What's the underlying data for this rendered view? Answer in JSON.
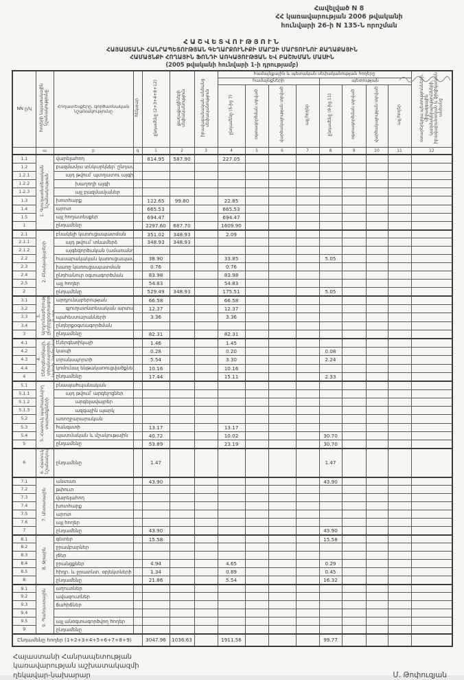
{
  "corner_note": {
    "line1": "Հավելված N 8",
    "line2": "ՀՀ կառավարության 2006 թվականի",
    "line3": "հունվարի 26-ի N 135-Ն որոշման"
  },
  "title": {
    "main": "ՀԱՇՎԵՏՎՈՒԹՅՈՒՆ",
    "line2": "ՀԱՅԱՍՏԱՆԻ ՀԱՆՐԱՊԵՏՈՒԹՅԱՆ ԳԵՂԱՐՔՈՒՆԻՔԻ ՄԱՐԶԻ ՄԱՐՏՈՒՆՈՒ ՔԱՂԱՔԱՅԻՆ",
    "line3": "ՀԱՄԱՅՆՔԻ ՀՈՂԱՅԻՆ ՖՈՆԴԻ ԱՌԿԱՅՈՒԹՅԱՆ ԵՎ ԲԱՇԽՄԱՆ ՄԱՍԻՆ",
    "line4": "(2005 թվականի հունվարի 1-ի դրությամբ)"
  },
  "table": {
    "header": {
      "nn": "NN ը/կ",
      "category": "հողերի նպատակային նշանակությունը",
      "description": "Հողատեսքերը, գործառնական նշանակությունը",
      "unit": "հեկտար",
      "band_ownership": "համայնքային և պետական սեփականության հողերը",
      "band_community": "համայնքների",
      "band_state": "պետության",
      "cols": [
        "ընդամենը (2+3+4+8+12)",
        "քաղաքացիների սեփականություն",
        "իրավաբանական անձանց սեփականություն",
        "ընդամենը (5-ից 7)",
        "օգտագործման տրված",
        "վարձակալության տրված",
        "այլ հողեր",
        "ընդամենը (9-ից 11)",
        "օգտագործման տրված",
        "վարձակալության տրված",
        "այլ հողեր",
        "օտարերկրյա պետությունների, միջազգային կազմակերպությունների, իրավաբանական և ֆիզիկական անձանց"
      ],
      "letters_row": [
        "",
        "ա",
        "բ",
        "գ",
        "1",
        "2",
        "3",
        "4",
        "5",
        "6",
        "7",
        "8",
        "9",
        "10",
        "11",
        "12"
      ]
    },
    "groups": [
      {
        "label": "1. Գյուղատնտեսական նշանակության",
        "rows": [
          {
            "nn": "1.1",
            "label": "վարելահող",
            "values": {
              "1": "814.95",
              "2": "587.90",
              "4": "227.05"
            }
          },
          {
            "nn": "1.2",
            "label": "բազմամյա տնկարկներ՝ ընդամենը"
          },
          {
            "nn": "1.2.1",
            "label": "այդ թվում՝ պտղատու այգի",
            "indent": 1
          },
          {
            "nn": "1.2.2",
            "label": "խաղողի այգի",
            "indent": 2
          },
          {
            "nn": "1.2.3",
            "label": "այլ բազմամյաներ",
            "indent": 2
          },
          {
            "nn": "1.3",
            "label": "խոտհարք",
            "values": {
              "1": "122.65",
              "2": "99.80",
              "4": "22.85"
            }
          },
          {
            "nn": "1.4",
            "label": "արոտ",
            "values": {
              "1": "665.53",
              "4": "665.53"
            }
          },
          {
            "nn": "1.5",
            "label": "այլ հողատեսքեր",
            "values": {
              "1": "694.47",
              "4": "694.47"
            }
          },
          {
            "nn": "1",
            "label": "ընդամենը",
            "total": true,
            "values": {
              "1": "2297.60",
              "2": "687.70",
              "4": "1609.90"
            }
          }
        ]
      },
      {
        "label": "2. Բնակավայրերի",
        "rows": [
          {
            "nn": "2.1",
            "label": "բնակելի կառուցապատման",
            "values": {
              "1": "351.02",
              "2": "348.93",
              "4": "2.09"
            }
          },
          {
            "nn": "2.1.1",
            "label": "այդ թվում՝ տնամերձ",
            "indent": 1,
            "values": {
              "1": "348.93",
              "2": "348.93"
            }
          },
          {
            "nn": "2.1.2",
            "label": "այգեգործական (ամառանոցային)",
            "indent": 1
          },
          {
            "nn": "2.2",
            "label": "հասարակական կառուցապատման",
            "values": {
              "1": "38.90",
              "4": "33.85",
              "8": "5.05"
            }
          },
          {
            "nn": "2.3",
            "label": "խառը կառուցապատման",
            "values": {
              "1": "0.76",
              "4": "0.76"
            }
          },
          {
            "nn": "2.4",
            "label": "ընդհանուր օգտագործման",
            "values": {
              "1": "83.98",
              "4": "83.98"
            }
          },
          {
            "nn": "2.5",
            "label": "այլ հողեր",
            "values": {
              "1": "54.83",
              "4": "54.83"
            }
          },
          {
            "nn": "2",
            "label": "ընդամենը",
            "total": true,
            "values": {
              "1": "529.49",
              "2": "348.93",
              "4": "175.51",
              "8": "5.05"
            }
          }
        ]
      },
      {
        "label": "3. Արդյունաբերության, ընդերքօգտագործման և այլ արտադրական",
        "rows": [
          {
            "nn": "3.1",
            "label": "արդյունաբերության",
            "values": {
              "1": "66.58",
              "4": "66.58"
            }
          },
          {
            "nn": "3.2",
            "label": "գյուղատնտեսական արտադրական",
            "indent": 1,
            "values": {
              "1": "12.37",
              "4": "12.37"
            }
          },
          {
            "nn": "3.3",
            "label": "պահեստարանների",
            "values": {
              "1": "3.36",
              "4": "3.36"
            }
          },
          {
            "nn": "3.4",
            "label": "ընդերքօգտագործման"
          },
          {
            "nn": "3",
            "label": "ընդամենը",
            "total": true,
            "values": {
              "1": "82.31",
              "4": "82.31"
            }
          }
        ]
      },
      {
        "label": "4. Էներգետիկայի, տրանսպորտի, կապի, կոմունալ ենթակառուցվածքների",
        "rows": [
          {
            "nn": "4.1",
            "label": "էներգետիկայի",
            "values": {
              "1": "1.46",
              "4": "1.45"
            }
          },
          {
            "nn": "4.2",
            "label": "կապի",
            "values": {
              "1": "0.28",
              "4": "0.20",
              "8": "0.08"
            }
          },
          {
            "nn": "4.3",
            "label": "տրանսպորտի",
            "values": {
              "1": "5.54",
              "4": "3.30",
              "8": "2.24"
            }
          },
          {
            "nn": "4.4",
            "label": "կոմունալ ենթակառուցվածքների",
            "values": {
              "1": "10.16",
              "4": "10.16"
            }
          },
          {
            "nn": "4",
            "label": "ընդամենը",
            "total": true,
            "values": {
              "1": "17.44",
              "4": "15.11",
              "8": "2.33"
            }
          }
        ]
      },
      {
        "label": "5. Հատուկ պահպանվող տարածքների",
        "rows": [
          {
            "nn": "5.1",
            "label": "բնապահպանական"
          },
          {
            "nn": "5.1.1",
            "label": "այդ թվում՝ արգելոցներ",
            "indent": 1
          },
          {
            "nn": "5.1.2",
            "label": "արգելավայրեր",
            "indent": 2
          },
          {
            "nn": "5.1.3",
            "label": "ազգային պարկ",
            "indent": 2
          },
          {
            "nn": "5.2",
            "label": "առողջարարական"
          },
          {
            "nn": "5.3",
            "label": "հանգստի",
            "values": {
              "1": "13.17",
              "4": "13.17"
            }
          },
          {
            "nn": "5.4",
            "label": "պատմական և մշակութային",
            "values": {
              "1": "40.72",
              "4": "10.02",
              "8": "30.70"
            }
          },
          {
            "nn": "5",
            "label": "ընդամենը",
            "total": true,
            "values": {
              "1": "53.89",
              "4": "23.19",
              "8": "30.70"
            }
          }
        ]
      },
      {
        "label": "6. Հատուկ նշանակության",
        "rows": [
          {
            "nn": "6",
            "label": "ընդամենը",
            "total": true,
            "h": 40,
            "values": {
              "1": "1.47",
              "8": "1.47"
            }
          }
        ]
      },
      {
        "label": "7. Անտառային",
        "rows": [
          {
            "nn": "7.1",
            "label": "անտառ",
            "values": {
              "1": "43.90",
              "8": "43.90"
            }
          },
          {
            "nn": "7.2",
            "label": "թփուտ"
          },
          {
            "nn": "7.3",
            "label": "վարելահող"
          },
          {
            "nn": "7.4",
            "label": "խոտհարք"
          },
          {
            "nn": "7.5",
            "label": "արոտ"
          },
          {
            "nn": "7.6",
            "label": "այլ հողեր"
          },
          {
            "nn": "7",
            "label": "ընդամենը",
            "total": true,
            "values": {
              "1": "43.90",
              "8": "43.90"
            }
          }
        ]
      },
      {
        "label": "8. Ջրային",
        "rows": [
          {
            "nn": "8.1",
            "label": "գետեր",
            "values": {
              "1": "15.58",
              "8": "15.58"
            }
          },
          {
            "nn": "8.2",
            "label": "ջրամբարներ"
          },
          {
            "nn": "8.3",
            "label": "լճեր"
          },
          {
            "nn": "8.4",
            "label": "ջրանցքներ",
            "values": {
              "1": "4.94",
              "4": "4.65",
              "8": "0.29"
            }
          },
          {
            "nn": "8.5",
            "label": "հիդր. և ջրատնտ. օբյեկտների",
            "values": {
              "1": "1.34",
              "4": "0.89",
              "8": "0.45"
            }
          },
          {
            "nn": "8",
            "label": "ընդամենը",
            "total": true,
            "values": {
              "1": "21.86",
              "4": "5.54",
              "8": "16.32"
            }
          }
        ]
      },
      {
        "label": "9. Պահուստային",
        "rows": [
          {
            "nn": "9.1",
            "label": "աղուտներ"
          },
          {
            "nn": "9.2",
            "label": "ավազուտներ"
          },
          {
            "nn": "9.3",
            "label": "ճահիճներ"
          },
          {
            "nn": "9.4",
            "label": ""
          },
          {
            "nn": "9.5",
            "label": "այլ անօգտագործվող հողեր"
          },
          {
            "nn": "9",
            "label": "ընդամենը",
            "total": true
          }
        ]
      }
    ],
    "total_row": {
      "label": "Ընդամենը հողեր (1+2+3+4+5+6+7+8+9)",
      "values": {
        "1": "3047.96",
        "2": "1036.63",
        "4": "1911.56",
        "8": "99.77"
      }
    }
  },
  "footer": {
    "line1": "Հայաստանի Հանրապետության",
    "line2": "կառավարության աշխատակազմի",
    "line3": "ղեկավար-նախարար",
    "signature": "Մ. Թոփուզյան"
  }
}
